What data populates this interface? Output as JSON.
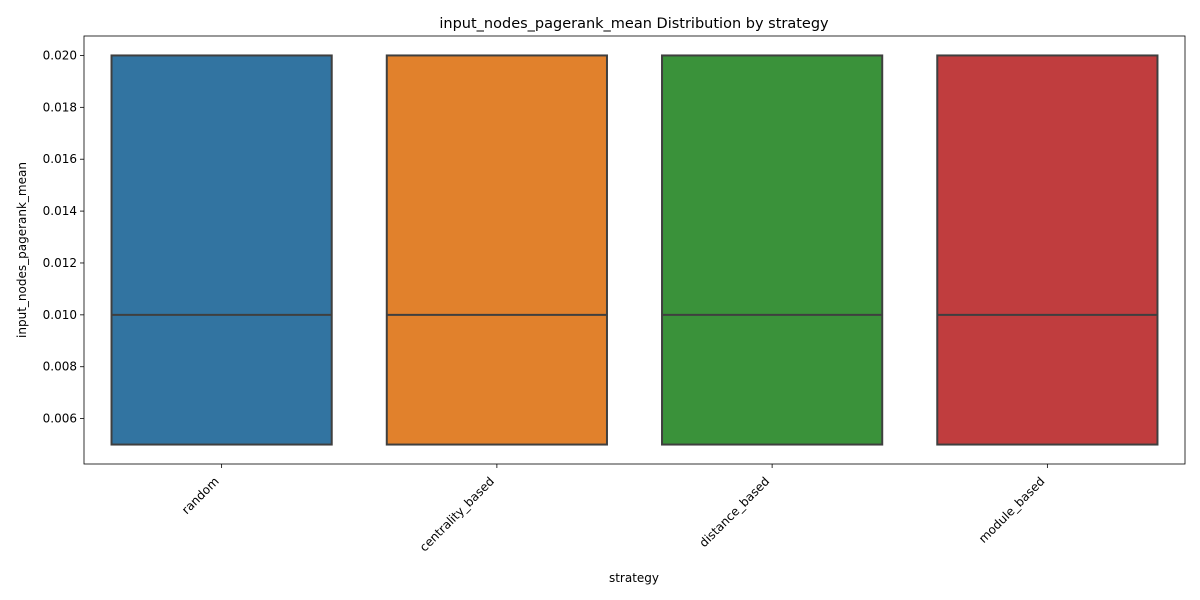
{
  "chart_data": {
    "type": "box",
    "title": "input_nodes_pagerank_mean Distribution by strategy",
    "xlabel": "strategy",
    "ylabel": "input_nodes_pagerank_mean",
    "categories": [
      "random",
      "centrality_based",
      "distance_based",
      "module_based"
    ],
    "boxes": [
      {
        "category": "random",
        "q1": 0.005,
        "median": 0.01,
        "q3": 0.02
      },
      {
        "category": "centrality_based",
        "q1": 0.005,
        "median": 0.01,
        "q3": 0.02
      },
      {
        "category": "distance_based",
        "q1": 0.005,
        "median": 0.01,
        "q3": 0.02
      },
      {
        "category": "module_based",
        "q1": 0.005,
        "median": 0.01,
        "q3": 0.02
      }
    ],
    "colors": [
      "#3274a1",
      "#e1812c",
      "#3a923a",
      "#c03d3e"
    ],
    "yticks": [
      "0.006",
      "0.008",
      "0.010",
      "0.012",
      "0.014",
      "0.016",
      "0.018",
      "0.020"
    ],
    "ylim": [
      0.00425,
      0.02075
    ],
    "grid": false,
    "legend": "none"
  }
}
